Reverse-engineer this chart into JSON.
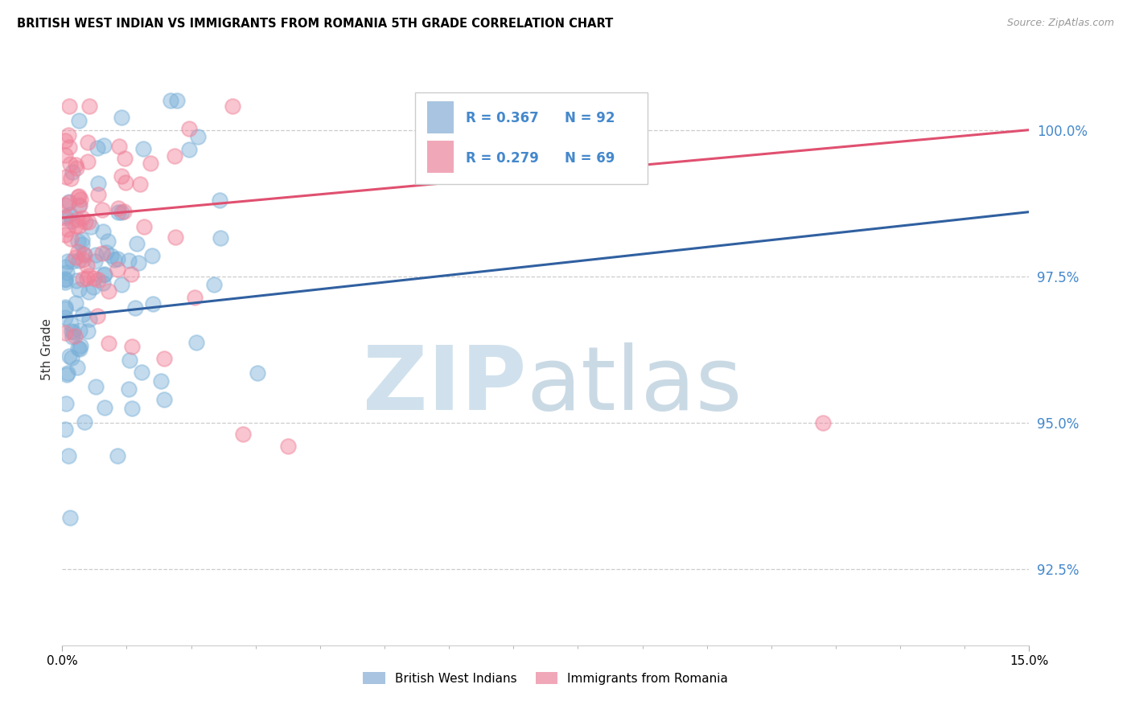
{
  "title": "BRITISH WEST INDIAN VS IMMIGRANTS FROM ROMANIA 5TH GRADE CORRELATION CHART",
  "source": "Source: ZipAtlas.com",
  "ylabel": "5th Grade",
  "ytick_values": [
    92.5,
    95.0,
    97.5,
    100.0
  ],
  "ylim": [
    91.2,
    101.3
  ],
  "xlim": [
    0.0,
    15.0
  ],
  "scatter_blue_color": "#7ab0d8",
  "scatter_pink_color": "#f08098",
  "legend_blue_color": "#a8c4e0",
  "legend_pink_color": "#f0a8b8",
  "trend_blue_color": "#3060a0",
  "trend_pink_color": "#e05070",
  "watermark_zip_color": "#c8dcea",
  "watermark_atlas_color": "#a0bcd0",
  "blue_intercept": 96.8,
  "blue_slope": 0.12,
  "pink_intercept": 98.5,
  "pink_slope": 0.1
}
